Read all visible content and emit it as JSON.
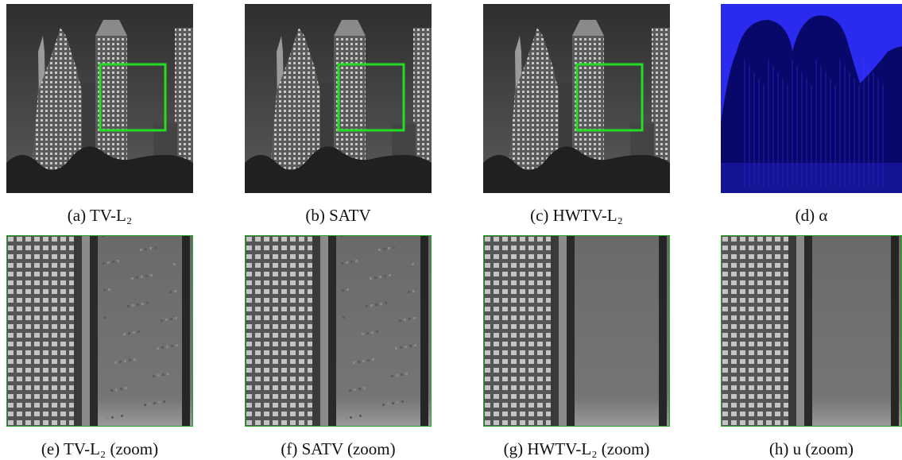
{
  "panels": [
    {
      "caption": "(a) TV-L₂"
    },
    {
      "caption": "(b) SATV"
    },
    {
      "caption": "(c) HWTV-L₂"
    },
    {
      "caption": "(d) α"
    },
    {
      "caption": "(e) TV-L₂ (zoom)"
    },
    {
      "caption": "(f) SATV (zoom)"
    },
    {
      "caption": "(g) HWTV-L₂ (zoom)"
    },
    {
      "caption": "(h) u (zoom)"
    }
  ]
}
